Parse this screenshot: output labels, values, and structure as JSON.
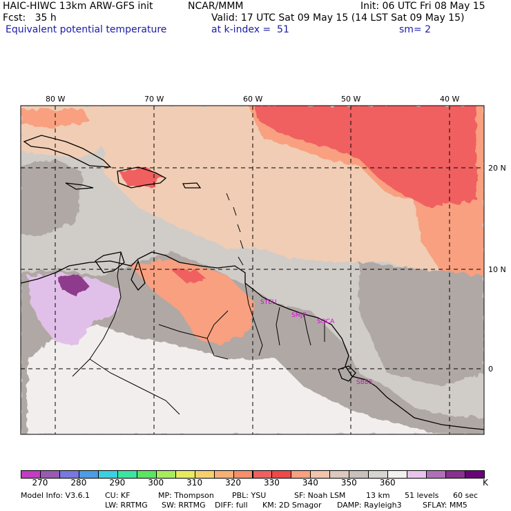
{
  "header": {
    "line1_left": "HAIC-HIWC 13km ARW-GFS init",
    "line1_mid": "NCAR/MMM",
    "line1_right": "Init: 06 UTC Fri 08 May 15",
    "line2_left": "Fcst:   35 h",
    "line2_right": "Valid: 17 UTC Sat 09 May 15 (14 LST Sat 09 May 15)",
    "line3_left": "Equivalent potential temperature",
    "line3_mid": "at k-index =  51",
    "line3_right": "sm= 2"
  },
  "map": {
    "lon_labels": [
      "80 W",
      "70 W",
      "60 W",
      "50 W",
      "40 W"
    ],
    "lat_labels": [
      "20 N",
      "10 N",
      "0"
    ],
    "stations": [
      "STEU",
      "SMJP",
      "SOCA",
      "SBBE"
    ],
    "colors": {
      "land_gray": "#b0a8a4",
      "light_gray": "#d0ccc8",
      "peach": "#f0cdb4",
      "salmon": "#f8a080",
      "red": "#f06060",
      "lavender": "#e0c0e8",
      "purple": "#8e3a8e",
      "station": "#e000e0"
    }
  },
  "colorbar": {
    "colors": [
      "#c43cc4",
      "#9a5ab4",
      "#7878e0",
      "#4c9ce6",
      "#3ad0e0",
      "#38e6a0",
      "#5ae660",
      "#a8ec5c",
      "#e8ec5c",
      "#f6d070",
      "#f8b074",
      "#f69068",
      "#f06060",
      "#f04848",
      "#f8a080",
      "#f2c4ac",
      "#dcc8bc",
      "#c8c0bc",
      "#d8d4d0",
      "#f4f0f0",
      "#e8c4ec",
      "#b070b8",
      "#8a3090",
      "#6a007a"
    ],
    "labels": [
      "270",
      "280",
      "290",
      "300",
      "310",
      "320",
      "330",
      "340",
      "350",
      "360"
    ],
    "unit": "K"
  },
  "footer": {
    "line1": [
      "Model Info: V3.6.1",
      "CU: KF",
      "MP: Thompson",
      "PBL: YSU",
      "SF: Noah LSM",
      "13 km",
      "51 levels",
      "60 sec"
    ],
    "line2": [
      "LW: RRTMG",
      "SW: RRTMG",
      "DIFF: full",
      "KM: 2D Smagor",
      "DAMP: Rayleigh3",
      "SFLAY: MM5"
    ]
  }
}
